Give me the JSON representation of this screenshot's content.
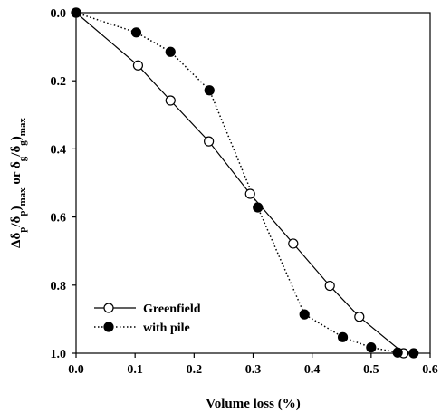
{
  "chart_data": {
    "type": "line",
    "xlabel": "Volume loss (%)",
    "ylabel_html": "Δδ<sub>p</sub>/δ<sub>p</sub>)<sub>max</sub> or δ<sub>g</sub>/δ<sub>g</sub>)<sub>max</sub>",
    "ylabel_parts": [
      {
        "t": "Δδ",
        "sub": false
      },
      {
        "t": "p",
        "sub": true
      },
      {
        "t": "/δ",
        "sub": false
      },
      {
        "t": "p",
        "sub": true
      },
      {
        "t": ")",
        "sub": false
      },
      {
        "t": "max",
        "sub": true
      },
      {
        "t": " or δ",
        "sub": false
      },
      {
        "t": "g",
        "sub": true
      },
      {
        "t": "/δ",
        "sub": false
      },
      {
        "t": "g",
        "sub": true
      },
      {
        "t": ")",
        "sub": false
      },
      {
        "t": "max",
        "sub": true
      }
    ],
    "xlim": [
      0.0,
      0.6
    ],
    "ylim": [
      0.0,
      1.0
    ],
    "y_inverted": true,
    "xticks": [
      "0.0",
      "0.1",
      "0.2",
      "0.3",
      "0.4",
      "0.5",
      "0.6"
    ],
    "yticks": [
      "0.0",
      "0.2",
      "0.4",
      "0.6",
      "0.8",
      "1.0"
    ],
    "legend_position": "bottom-left",
    "series": [
      {
        "name": "Greenfield",
        "marker": "open-circle",
        "line": "solid",
        "x": [
          0.0,
          0.105,
          0.16,
          0.225,
          0.295,
          0.368,
          0.43,
          0.48,
          0.555
        ],
        "y": [
          0.0,
          0.155,
          0.258,
          0.378,
          0.532,
          0.678,
          0.802,
          0.893,
          1.0
        ]
      },
      {
        "name": "with pile",
        "marker": "filled-circle",
        "line": "dotted",
        "x": [
          0.0,
          0.102,
          0.16,
          0.226,
          0.308,
          0.387,
          0.452,
          0.5,
          0.545,
          0.572
        ],
        "y": [
          0.0,
          0.058,
          0.115,
          0.228,
          0.572,
          0.886,
          0.953,
          0.983,
          0.998,
          1.0
        ]
      }
    ]
  }
}
